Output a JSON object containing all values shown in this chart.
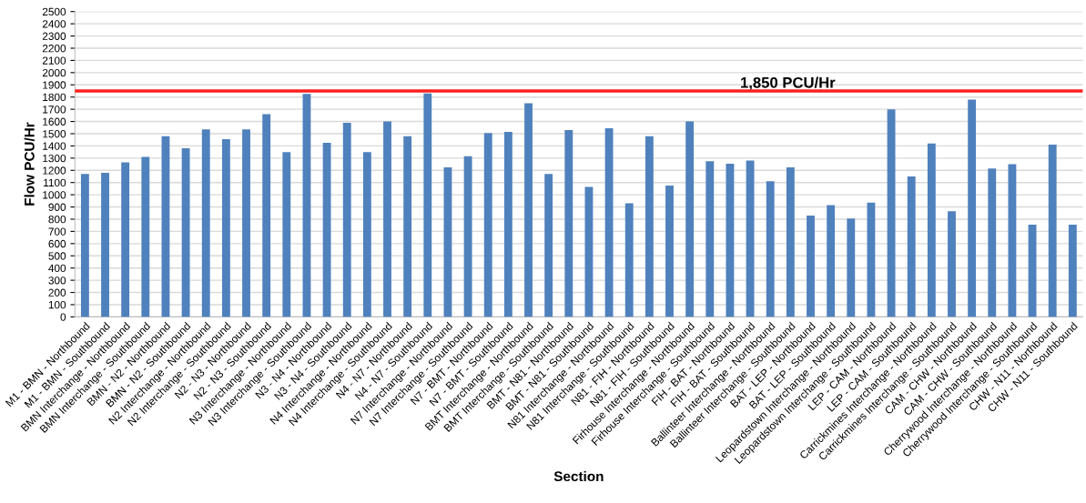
{
  "chart_data": {
    "type": "bar",
    "xlabel": "Section",
    "ylabel": "Flow PCU/Hr",
    "categories": [
      "M1 - BMN - Northbound",
      "M1 - BMN - Southbound",
      "BMN Interchange - Northbound",
      "BMN Interchange - Southbound",
      "BMN - N2 - Northbound",
      "BMN - N2 - Southbound",
      "N2 Interchange - Northbound",
      "N2 Interchange - Southbound",
      "N2 - N3 - Northbound",
      "N2 - N3 - Southbound",
      "N3 Interchange - Northbound",
      "N3 Interchange - Southbound",
      "N3 - N4 - Northbound",
      "N3 - N4 - Southbound",
      "N4 Interchange - Northbound",
      "N4 Interchange - Southbound",
      "N4 - N7 - Northbound",
      "N4 - N7 - Southbound",
      "N7 Interchange - Northbound",
      "N7 Interchange - Southbound",
      "N7 - BMT - Northbound",
      "N7 - BMT - Southbound",
      "BMT Interchange - Northbound",
      "BMT Interchange - Southbound",
      "BMT - N81 - Northbound",
      "BMT - N81 - Southbound",
      "N81 Interchange - Northbound",
      "N81 Interchange - Southbound",
      "N81 - FIH - Northbound",
      "N81 - FIH - Southbound",
      "Firhouse Interchange - Northbound",
      "Firhouse Interchange - Southbound",
      "FIH - BAT - Northbound",
      "FIH - BAT - Southbound",
      "Ballinteer Interchange - Northbound",
      "Ballinteer Interchange - Southbound",
      "BAT - LEP - Northbound",
      "BAT - LEP - Southbound",
      "Leopardstown Interchange - Northbound",
      "Leopardstown Interchange - Southbound",
      "LEP - CAM - Northbound",
      "LEP - CAM - Southbound",
      "Carrickmines Interchange - Northbound",
      "Carrickmines Interchange - Southbound",
      "CAM - CHW - Northbound",
      "CAM - CHW - Southbound",
      "Cherrywood Interchange - Northbound",
      "Cherrywood Interchange - Southbound",
      "CHW - N11 - Northbound",
      "CHW - N11 - Southbound"
    ],
    "values": [
      1170,
      1180,
      1265,
      1310,
      1480,
      1380,
      1535,
      1455,
      1535,
      1660,
      1350,
      1825,
      1425,
      1590,
      1350,
      1600,
      1480,
      1830,
      1225,
      1315,
      1505,
      1515,
      1750,
      1170,
      1530,
      1065,
      1545,
      930,
      1480,
      1075,
      1600,
      1275,
      1255,
      1280,
      1110,
      1225,
      830,
      915,
      805,
      935,
      1700,
      1150,
      1420,
      865,
      1780,
      1215,
      1250,
      755,
      1410,
      755
    ],
    "color": "#4f81bd",
    "ylim": [
      0,
      2500
    ],
    "yticks": [
      0,
      100,
      200,
      300,
      400,
      500,
      600,
      700,
      800,
      900,
      1000,
      1100,
      1200,
      1300,
      1400,
      1500,
      1600,
      1700,
      1800,
      1900,
      2000,
      2100,
      2200,
      2300,
      2400,
      2500
    ],
    "grid": "y",
    "ref_lines": [
      {
        "axis": "y",
        "value": 1850,
        "label": "1,850 PCU/Hr",
        "color": "#ff2020"
      }
    ]
  }
}
